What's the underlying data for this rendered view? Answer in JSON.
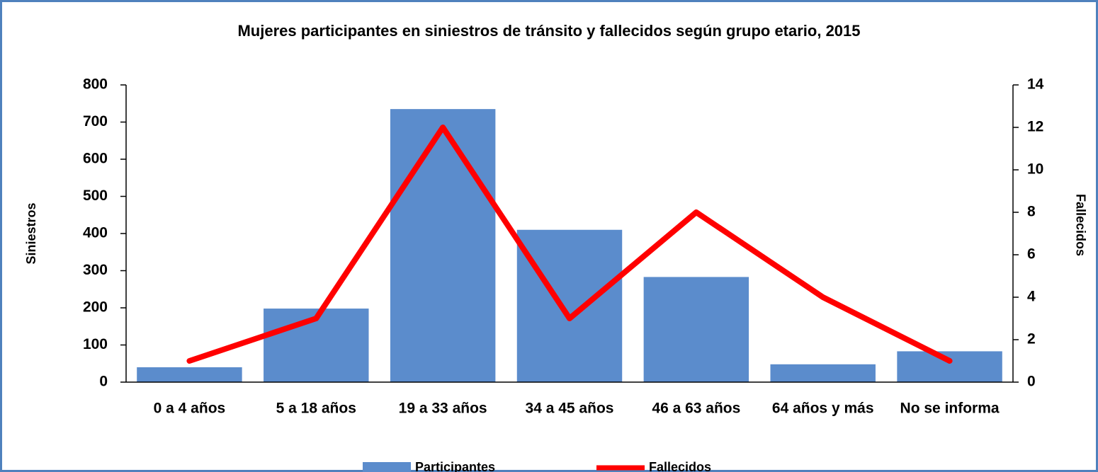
{
  "chart_data": {
    "type": "bar_line",
    "title": "Mujeres participantes en siniestros de tránsito y fallecidos  según grupo etario, 2015",
    "categories": [
      "0 a 4 años",
      "5 a 18 años",
      "19 a 33 años",
      "34 a 45 años",
      "46 a 63 años",
      "64 años y más",
      "No se informa"
    ],
    "series": [
      {
        "name": "Participantes",
        "color": "#5b8ccc",
        "type": "bar",
        "values": [
          40,
          198,
          735,
          410,
          283,
          48,
          83
        ]
      },
      {
        "name": "Fallecidos",
        "color": "#ff0000",
        "type": "line",
        "axis": "y2",
        "values": [
          1,
          3,
          12,
          3,
          8,
          4,
          1
        ]
      }
    ],
    "ylabel": "Siniestros",
    "y2label": "Fallecidos",
    "ylim": [
      0,
      800
    ],
    "yticks": [
      0,
      100,
      200,
      300,
      400,
      500,
      600,
      700,
      800
    ],
    "y2lim": [
      0,
      14
    ],
    "y2ticks": [
      0,
      2,
      4,
      6,
      8,
      10,
      12,
      14
    ],
    "legend": "bottom"
  }
}
